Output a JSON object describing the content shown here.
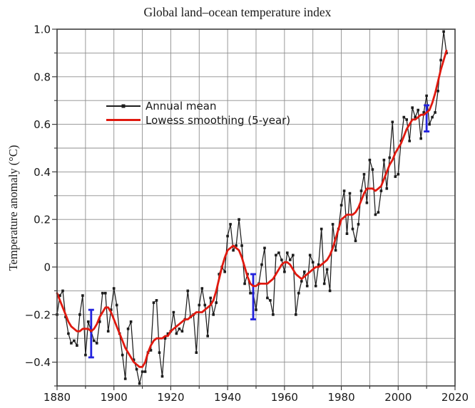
{
  "chart_data": {
    "type": "line",
    "title": "Global land–ocean temperature index",
    "xlabel": "",
    "ylabel": "Temperature anomaly (°C)",
    "xlim": [
      1880,
      2020
    ],
    "ylim": [
      -0.5,
      1.0
    ],
    "x_minor_step": 10,
    "y_minor_step": 0.1,
    "grid": true,
    "start_year": 1880,
    "end_year": 2017,
    "x_ticks": [
      {
        "v": 1880,
        "label": "1880"
      },
      {
        "v": 1900,
        "label": "1900"
      },
      {
        "v": 1920,
        "label": "1920"
      },
      {
        "v": 1940,
        "label": "1940"
      },
      {
        "v": 1960,
        "label": "1960"
      },
      {
        "v": 1980,
        "label": "1980"
      },
      {
        "v": 2000,
        "label": "2000"
      },
      {
        "v": 2020,
        "label": "2020"
      }
    ],
    "y_ticks": [
      {
        "v": 1.0,
        "label": "1.0"
      },
      {
        "v": 0.8,
        "label": "0.8"
      },
      {
        "v": 0.6,
        "label": "0.6"
      },
      {
        "v": 0.4,
        "label": "0.4"
      },
      {
        "v": 0.2,
        "label": "0.2"
      },
      {
        "v": 0,
        "label": "0"
      },
      {
        "v": -0.2,
        "label": "−0.2"
      },
      {
        "v": -0.4,
        "label": "−0.4"
      }
    ],
    "legend": {
      "position": "upper-left-inside",
      "entries": [
        {
          "label": "Annual mean",
          "color": "#1c1c1c",
          "marker": "square"
        },
        {
          "label": "Lowess smoothing (5-year)",
          "color": "#e0190f",
          "marker": "none"
        }
      ]
    },
    "series": [
      {
        "name": "Annual mean",
        "style": "line+marker",
        "color": "#1c1c1c",
        "values": [
          -0.2,
          -0.12,
          -0.1,
          -0.21,
          -0.28,
          -0.32,
          -0.31,
          -0.33,
          -0.2,
          -0.12,
          -0.37,
          -0.23,
          -0.27,
          -0.31,
          -0.32,
          -0.23,
          -0.11,
          -0.11,
          -0.27,
          -0.18,
          -0.09,
          -0.16,
          -0.28,
          -0.37,
          -0.47,
          -0.26,
          -0.23,
          -0.39,
          -0.43,
          -0.49,
          -0.44,
          -0.44,
          -0.36,
          -0.35,
          -0.15,
          -0.14,
          -0.36,
          -0.46,
          -0.3,
          -0.28,
          -0.27,
          -0.19,
          -0.28,
          -0.26,
          -0.27,
          -0.22,
          -0.1,
          -0.21,
          -0.2,
          -0.36,
          -0.16,
          -0.09,
          -0.16,
          -0.29,
          -0.13,
          -0.2,
          -0.15,
          -0.03,
          0.0,
          -0.02,
          0.13,
          0.18,
          0.07,
          0.09,
          0.2,
          0.09,
          -0.07,
          -0.03,
          -0.11,
          -0.11,
          -0.18,
          -0.07,
          0.01,
          0.08,
          -0.13,
          -0.14,
          -0.2,
          0.05,
          0.06,
          0.03,
          -0.02,
          0.06,
          0.03,
          0.05,
          -0.2,
          -0.11,
          -0.06,
          -0.02,
          -0.08,
          0.05,
          0.02,
          -0.08,
          0.01,
          0.16,
          -0.07,
          -0.01,
          -0.1,
          0.18,
          0.07,
          0.16,
          0.26,
          0.32,
          0.14,
          0.31,
          0.16,
          0.11,
          0.18,
          0.32,
          0.39,
          0.27,
          0.45,
          0.41,
          0.22,
          0.23,
          0.32,
          0.45,
          0.33,
          0.46,
          0.61,
          0.38,
          0.39,
          0.53,
          0.63,
          0.62,
          0.53,
          0.67,
          0.63,
          0.66,
          0.54,
          0.65,
          0.72,
          0.6,
          0.63,
          0.65,
          0.74,
          0.87,
          0.99,
          0.9
        ]
      },
      {
        "name": "Lowess smoothing (5-year)",
        "style": "line",
        "color": "#e0190f",
        "values": [
          -0.11,
          -0.14,
          -0.17,
          -0.2,
          -0.23,
          -0.25,
          -0.26,
          -0.27,
          -0.27,
          -0.26,
          -0.26,
          -0.26,
          -0.27,
          -0.26,
          -0.24,
          -0.21,
          -0.19,
          -0.17,
          -0.17,
          -0.19,
          -0.22,
          -0.25,
          -0.28,
          -0.31,
          -0.34,
          -0.36,
          -0.38,
          -0.4,
          -0.41,
          -0.42,
          -0.42,
          -0.4,
          -0.36,
          -0.33,
          -0.31,
          -0.3,
          -0.3,
          -0.3,
          -0.29,
          -0.29,
          -0.27,
          -0.26,
          -0.25,
          -0.24,
          -0.23,
          -0.22,
          -0.22,
          -0.21,
          -0.2,
          -0.19,
          -0.19,
          -0.19,
          -0.18,
          -0.17,
          -0.16,
          -0.14,
          -0.1,
          -0.05,
          0.0,
          0.04,
          0.07,
          0.08,
          0.09,
          0.08,
          0.07,
          0.04,
          0.0,
          -0.04,
          -0.07,
          -0.08,
          -0.08,
          -0.07,
          -0.07,
          -0.07,
          -0.07,
          -0.06,
          -0.05,
          -0.03,
          -0.01,
          0.01,
          0.02,
          0.02,
          0.01,
          -0.01,
          -0.03,
          -0.04,
          -0.05,
          -0.04,
          -0.03,
          -0.02,
          -0.01,
          0.0,
          0.0,
          0.01,
          0.02,
          0.03,
          0.05,
          0.08,
          0.12,
          0.16,
          0.2,
          0.21,
          0.22,
          0.22,
          0.22,
          0.23,
          0.25,
          0.28,
          0.31,
          0.33,
          0.33,
          0.33,
          0.32,
          0.33,
          0.34,
          0.37,
          0.4,
          0.43,
          0.45,
          0.48,
          0.5,
          0.52,
          0.55,
          0.58,
          0.6,
          0.62,
          0.62,
          0.63,
          0.64,
          0.64,
          0.65,
          0.66,
          0.69,
          0.73,
          0.78,
          0.83,
          0.87,
          0.91
        ]
      }
    ],
    "error_bars": {
      "color": "#2222dd",
      "points": [
        {
          "year": 1892,
          "low": -0.38,
          "high": -0.18
        },
        {
          "year": 1949,
          "low": -0.22,
          "high": -0.03
        },
        {
          "year": 2010,
          "low": 0.57,
          "high": 0.68
        }
      ]
    },
    "colors": {
      "background": "#ffffff",
      "frame": "#3d3d3d",
      "grid": "#8e8e8e",
      "text": "#191919"
    }
  }
}
